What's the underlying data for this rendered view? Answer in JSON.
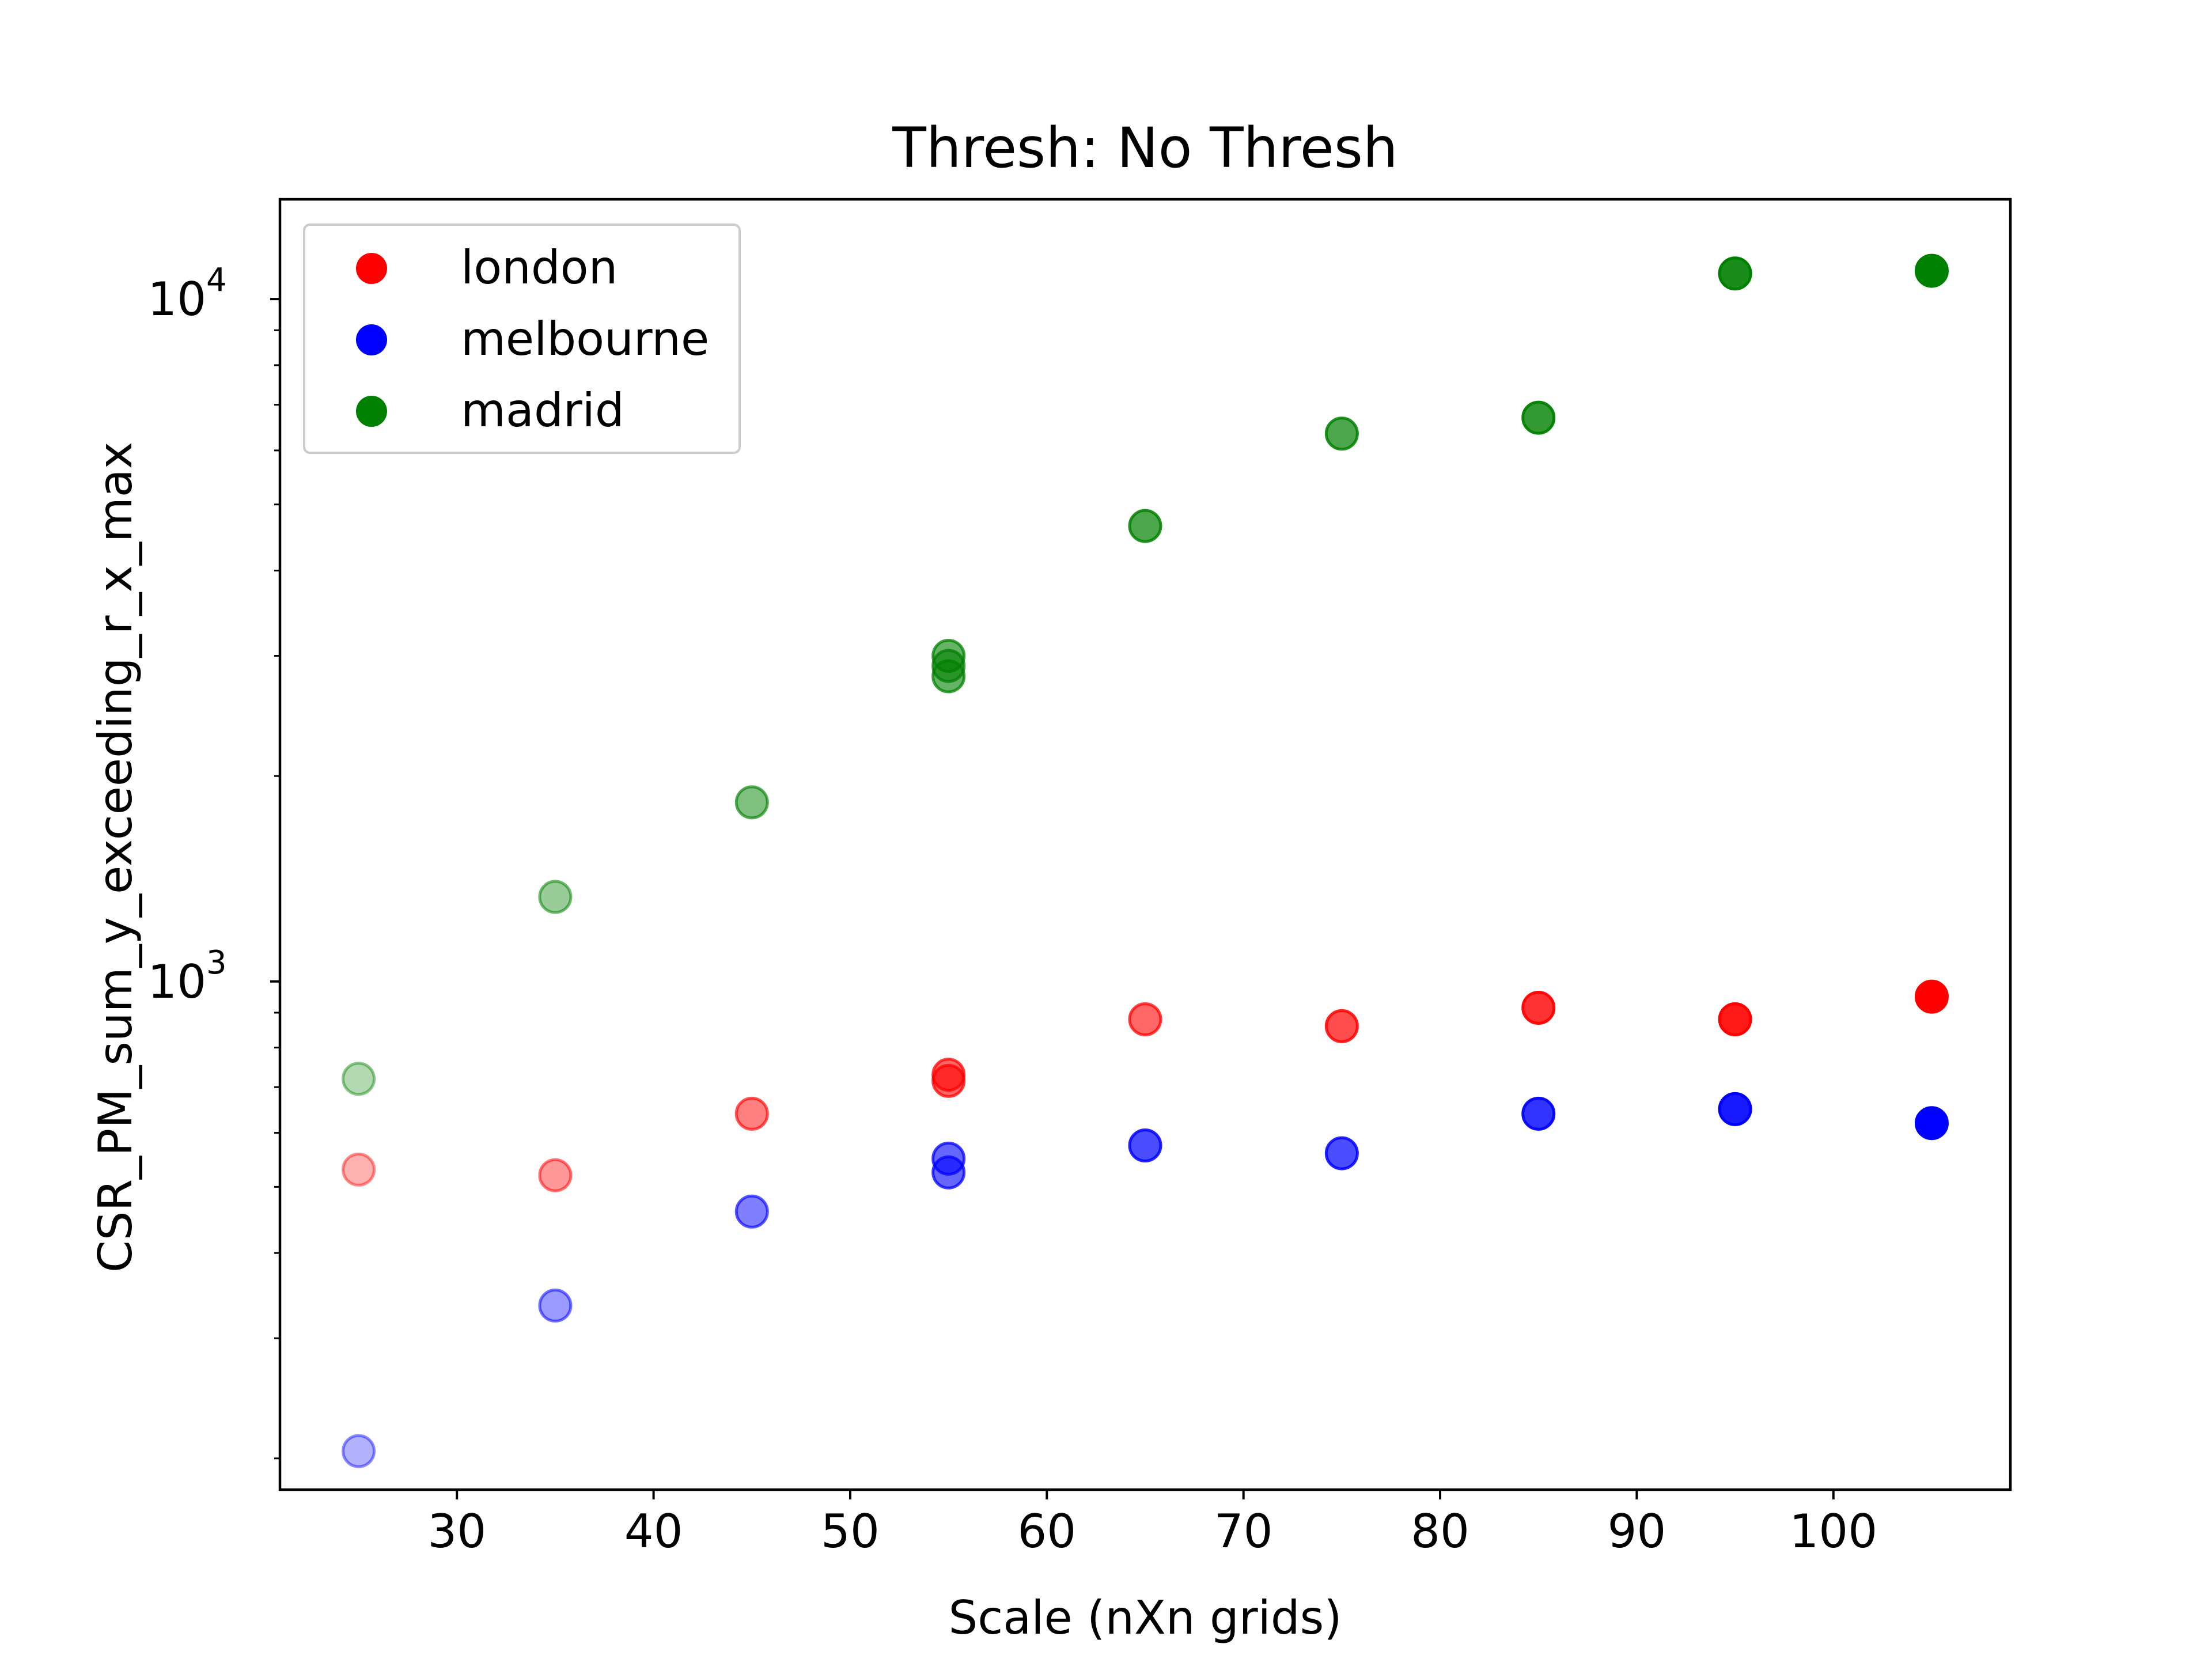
{
  "chart_data": {
    "type": "scatter",
    "title": "Thresh: No Thresh",
    "xlabel": "Scale (nXn grids)",
    "ylabel": "CSR_PM_sum_y_exceeding_r_x_max",
    "yscale": "log",
    "xlim": [
      21,
      109
    ],
    "ylim": [
      180,
      14000
    ],
    "xticks": [
      30,
      40,
      50,
      60,
      70,
      80,
      90,
      100
    ],
    "yticks_major": [
      {
        "value": 1000,
        "base": "10",
        "exp": "3"
      },
      {
        "value": 10000,
        "base": "10",
        "exp": "4"
      }
    ],
    "yticks_minor": [
      200,
      300,
      400,
      500,
      600,
      700,
      800,
      900,
      2000,
      3000,
      4000,
      5000,
      6000,
      7000,
      8000,
      9000
    ],
    "grid": false,
    "legend": {
      "position": "top-left"
    },
    "series": [
      {
        "name": "london",
        "color": "#ff0000",
        "points": [
          {
            "x": 25,
            "y": 530,
            "alpha": 0.3
          },
          {
            "x": 35,
            "y": 520,
            "alpha": 0.4
          },
          {
            "x": 45,
            "y": 640,
            "alpha": 0.5
          },
          {
            "x": 55,
            "y": 730,
            "alpha": 0.6
          },
          {
            "x": 55,
            "y": 715,
            "alpha": 0.6
          },
          {
            "x": 65,
            "y": 880,
            "alpha": 0.6
          },
          {
            "x": 75,
            "y": 860,
            "alpha": 0.7
          },
          {
            "x": 85,
            "y": 915,
            "alpha": 0.8
          },
          {
            "x": 95,
            "y": 880,
            "alpha": 0.9
          },
          {
            "x": 105,
            "y": 950,
            "alpha": 1.0
          }
        ]
      },
      {
        "name": "melbourne",
        "color": "#0000ff",
        "points": [
          {
            "x": 25,
            "y": 205,
            "alpha": 0.3
          },
          {
            "x": 35,
            "y": 335,
            "alpha": 0.4
          },
          {
            "x": 45,
            "y": 460,
            "alpha": 0.5
          },
          {
            "x": 55,
            "y": 550,
            "alpha": 0.6
          },
          {
            "x": 55,
            "y": 525,
            "alpha": 0.6
          },
          {
            "x": 65,
            "y": 575,
            "alpha": 0.7
          },
          {
            "x": 75,
            "y": 560,
            "alpha": 0.7
          },
          {
            "x": 85,
            "y": 640,
            "alpha": 0.8
          },
          {
            "x": 95,
            "y": 650,
            "alpha": 0.9
          },
          {
            "x": 105,
            "y": 620,
            "alpha": 1.0
          }
        ]
      },
      {
        "name": "madrid",
        "color": "#008000",
        "points": [
          {
            "x": 25,
            "y": 720,
            "alpha": 0.3
          },
          {
            "x": 35,
            "y": 1330,
            "alpha": 0.4
          },
          {
            "x": 45,
            "y": 1830,
            "alpha": 0.5
          },
          {
            "x": 55,
            "y": 3000,
            "alpha": 0.6
          },
          {
            "x": 55,
            "y": 2900,
            "alpha": 0.6
          },
          {
            "x": 55,
            "y": 2800,
            "alpha": 0.6
          },
          {
            "x": 65,
            "y": 4650,
            "alpha": 0.7
          },
          {
            "x": 75,
            "y": 6350,
            "alpha": 0.7
          },
          {
            "x": 85,
            "y": 6700,
            "alpha": 0.8
          },
          {
            "x": 95,
            "y": 10900,
            "alpha": 0.9
          },
          {
            "x": 105,
            "y": 11000,
            "alpha": 1.0
          }
        ]
      }
    ]
  }
}
